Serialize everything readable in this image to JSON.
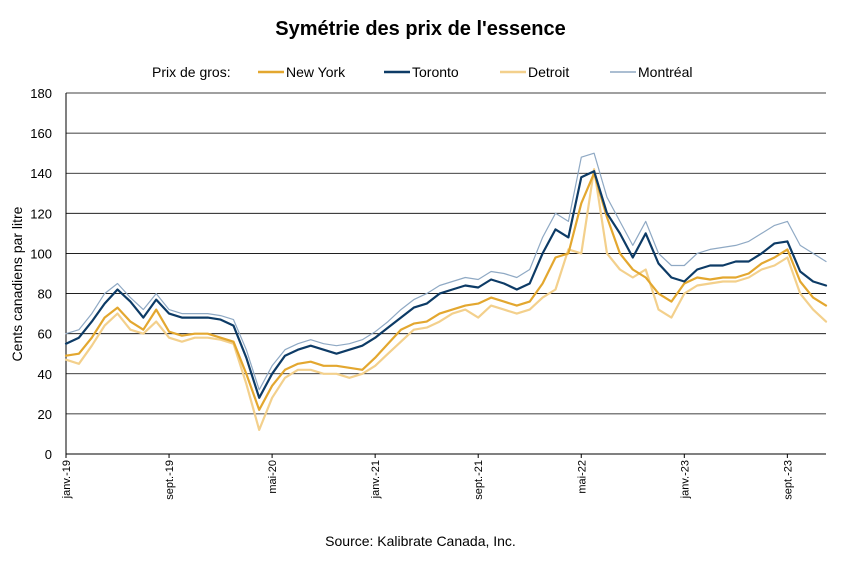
{
  "chart_data": {
    "type": "line",
    "title": "Symétrie des prix de l'essence",
    "ylabel": "Cents canadiens par litre",
    "xlabel": "",
    "ylim": [
      0,
      180
    ],
    "yticks": [
      0,
      20,
      40,
      60,
      80,
      100,
      120,
      140,
      160,
      180
    ],
    "grid": "horizontal",
    "legend_title": "Prix de gros:",
    "legend_placement": "top",
    "x_tick_labels": [
      "janv.-19",
      "sept.-19",
      "mai-20",
      "janv.-21",
      "sept.-21",
      "mai-22",
      "janv.-23",
      "sept.-23"
    ],
    "x_tick_months": [
      "2019-01",
      "2019-09",
      "2020-05",
      "2021-01",
      "2021-09",
      "2022-05",
      "2023-01",
      "2023-09"
    ],
    "x": [
      "2019-01",
      "2019-02",
      "2019-03",
      "2019-04",
      "2019-05",
      "2019-06",
      "2019-07",
      "2019-08",
      "2019-09",
      "2019-10",
      "2019-11",
      "2019-12",
      "2020-01",
      "2020-02",
      "2020-03",
      "2020-04",
      "2020-05",
      "2020-06",
      "2020-07",
      "2020-08",
      "2020-09",
      "2020-10",
      "2020-11",
      "2020-12",
      "2021-01",
      "2021-02",
      "2021-03",
      "2021-04",
      "2021-05",
      "2021-06",
      "2021-07",
      "2021-08",
      "2021-09",
      "2021-10",
      "2021-11",
      "2021-12",
      "2022-01",
      "2022-02",
      "2022-03",
      "2022-04",
      "2022-05",
      "2022-06",
      "2022-07",
      "2022-08",
      "2022-09",
      "2022-10",
      "2022-11",
      "2022-12",
      "2023-01",
      "2023-02",
      "2023-03",
      "2023-04",
      "2023-05",
      "2023-06",
      "2023-07",
      "2023-08",
      "2023-09",
      "2023-10",
      "2023-11",
      "2023-12"
    ],
    "series": [
      {
        "name": "New York",
        "color": "#E3A72F",
        "width": 2.2,
        "values": [
          49,
          50,
          58,
          68,
          73,
          66,
          62,
          72,
          61,
          59,
          60,
          60,
          58,
          56,
          40,
          22,
          34,
          42,
          45,
          46,
          44,
          44,
          43,
          42,
          48,
          55,
          62,
          65,
          66,
          70,
          72,
          74,
          75,
          78,
          76,
          74,
          76,
          85,
          98,
          100,
          125,
          140,
          118,
          100,
          92,
          88,
          80,
          76,
          85,
          88,
          87,
          88,
          88,
          90,
          95,
          98,
          102,
          86,
          78,
          74
        ]
      },
      {
        "name": "Toronto",
        "color": "#0D3B66",
        "width": 2.2,
        "values": [
          55,
          58,
          66,
          75,
          82,
          76,
          68,
          77,
          70,
          68,
          68,
          68,
          67,
          64,
          48,
          28,
          40,
          49,
          52,
          54,
          52,
          50,
          52,
          54,
          58,
          63,
          68,
          73,
          75,
          80,
          82,
          84,
          83,
          87,
          85,
          82,
          85,
          100,
          112,
          108,
          138,
          141,
          120,
          110,
          98,
          110,
          95,
          88,
          86,
          92,
          94,
          94,
          96,
          96,
          100,
          105,
          106,
          91,
          86,
          84
        ]
      },
      {
        "name": "Detroit",
        "color": "#F3D08C",
        "width": 2.2,
        "values": [
          47,
          45,
          54,
          64,
          70,
          62,
          60,
          66,
          58,
          56,
          58,
          58,
          57,
          55,
          35,
          12,
          28,
          38,
          42,
          42,
          40,
          40,
          38,
          40,
          44,
          50,
          56,
          62,
          63,
          66,
          70,
          72,
          68,
          74,
          72,
          70,
          72,
          78,
          82,
          102,
          100,
          142,
          100,
          92,
          88,
          92,
          72,
          68,
          80,
          84,
          85,
          86,
          86,
          88,
          92,
          94,
          98,
          80,
          72,
          66
        ]
      },
      {
        "name": "Montréal",
        "color": "#8FA9C4",
        "width": 1.2,
        "values": [
          60,
          62,
          70,
          80,
          85,
          78,
          72,
          80,
          72,
          70,
          70,
          70,
          69,
          67,
          52,
          32,
          44,
          52,
          55,
          57,
          55,
          54,
          55,
          57,
          61,
          66,
          72,
          77,
          80,
          84,
          86,
          88,
          87,
          91,
          90,
          88,
          92,
          108,
          120,
          116,
          148,
          150,
          128,
          116,
          104,
          116,
          100,
          94,
          94,
          100,
          102,
          103,
          104,
          106,
          110,
          114,
          116,
          104,
          100,
          96
        ]
      }
    ]
  },
  "source_note": "Source: Kalibrate Canada, Inc."
}
